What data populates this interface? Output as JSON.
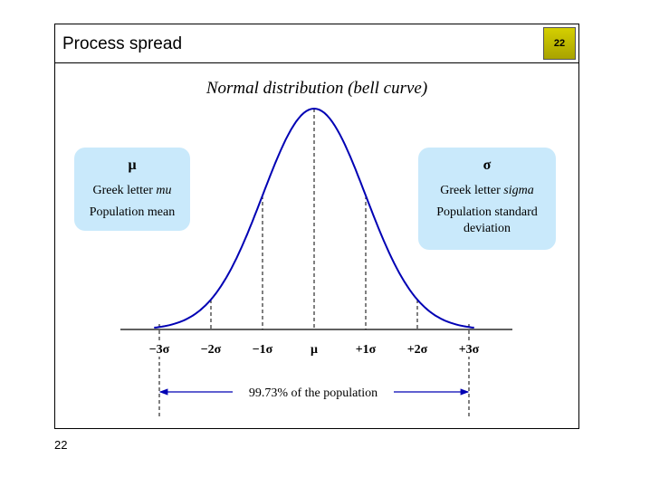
{
  "slide": {
    "title": "Process spread",
    "page_badge": "22",
    "footer_page_number": "22"
  },
  "diagram": {
    "title": "Normal distribution (bell curve)",
    "mu_box": {
      "symbol": "μ",
      "line1_prefix": "Greek letter ",
      "line1_name": "mu",
      "line2": "Population mean"
    },
    "sigma_box": {
      "symbol": "σ",
      "line1_prefix": "Greek letter ",
      "line1_name": "sigma",
      "line2": "Population standard deviation"
    },
    "axis_labels": [
      "−3σ",
      "−2σ",
      "−1σ",
      "μ",
      "+1σ",
      "+2σ",
      "+3σ"
    ],
    "span_label": "99.73% of the population",
    "curve_color": "#0000b4",
    "box_color": "#c9e9fb"
  }
}
